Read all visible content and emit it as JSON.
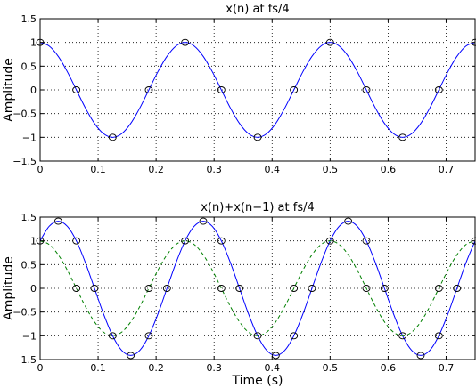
{
  "chart_data": [
    {
      "type": "line",
      "title": "x(n) at fs/4",
      "xlabel": "",
      "ylabel": "Amplitude",
      "xlim": [
        0,
        0.75
      ],
      "ylim": [
        -1.5,
        1.5
      ],
      "xticks": [
        0,
        0.1,
        0.2,
        0.3,
        0.4,
        0.5,
        0.6,
        0.7
      ],
      "xtick_labels": [
        "0",
        "0.1",
        "0.2",
        "0.3",
        "0.4",
        "0.5",
        "0.6",
        "0.7"
      ],
      "yticks": [
        -1.5,
        -1,
        -0.5,
        0,
        0.5,
        1,
        1.5
      ],
      "ytick_labels": [
        "−1.5",
        "−1",
        "−0.5",
        "0",
        "0.5",
        "1",
        "1.5"
      ],
      "grid": true,
      "series": [
        {
          "style": "solid",
          "color": "#0000ff",
          "x": [
            0,
            0.015625,
            0.03125,
            0.046875,
            0.0625,
            0.078125,
            0.09375,
            0.109375,
            0.125,
            0.140625,
            0.15625,
            0.171875,
            0.1875,
            0.203125,
            0.21875,
            0.234375,
            0.25,
            0.265625,
            0.28125,
            0.296875,
            0.3125,
            0.328125,
            0.34375,
            0.359375,
            0.375,
            0.390625,
            0.40625,
            0.421875,
            0.4375,
            0.453125,
            0.46875,
            0.484375,
            0.5,
            0.515625,
            0.53125,
            0.546875,
            0.5625,
            0.578125,
            0.59375,
            0.609375,
            0.625,
            0.640625,
            0.65625,
            0.671875,
            0.6875,
            0.703125,
            0.71875,
            0.734375,
            0.75
          ],
          "y": [
            1,
            0.924,
            0.707,
            0.383,
            0,
            -0.383,
            -0.707,
            -0.924,
            -1,
            -0.924,
            -0.707,
            -0.383,
            0,
            0.383,
            0.707,
            0.924,
            1,
            0.924,
            0.707,
            0.383,
            0,
            -0.383,
            -0.707,
            -0.924,
            -1,
            -0.924,
            -0.707,
            -0.383,
            0,
            0.383,
            0.707,
            0.924,
            1,
            0.924,
            0.707,
            0.383,
            0,
            -0.383,
            -0.707,
            -0.924,
            -1,
            -0.924,
            -0.707,
            -0.383,
            0,
            0.383,
            0.707,
            0.924,
            1
          ]
        },
        {
          "style": "markers",
          "marker": "circle",
          "color": "#000000",
          "x": [
            0,
            0.0625,
            0.125,
            0.1875,
            0.25,
            0.3125,
            0.375,
            0.4375,
            0.5,
            0.5625,
            0.625,
            0.6875,
            0.75
          ],
          "y": [
            1,
            0,
            -1,
            0,
            1,
            0,
            -1,
            0,
            1,
            0,
            -1,
            0,
            1
          ]
        }
      ]
    },
    {
      "type": "line",
      "title": "x(n)+x(n−1) at fs/4",
      "xlabel": "Time (s)",
      "ylabel": "Amplitude",
      "xlim": [
        0,
        0.75
      ],
      "ylim": [
        -1.5,
        1.5
      ],
      "xticks": [
        0,
        0.1,
        0.2,
        0.3,
        0.4,
        0.5,
        0.6,
        0.7
      ],
      "xtick_labels": [
        "0",
        "0.1",
        "0.2",
        "0.3",
        "0.4",
        "0.5",
        "0.6",
        "0.7"
      ],
      "yticks": [
        -1.5,
        -1,
        -0.5,
        0,
        0.5,
        1,
        1.5
      ],
      "ytick_labels": [
        "−1.5",
        "−1",
        "−0.5",
        "0",
        "0.5",
        "1",
        "1.5"
      ],
      "grid": true,
      "series": [
        {
          "style": "solid",
          "color": "#0000ff",
          "x": [
            0,
            0.015625,
            0.03125,
            0.046875,
            0.0625,
            0.078125,
            0.09375,
            0.109375,
            0.125,
            0.140625,
            0.15625,
            0.171875,
            0.1875,
            0.203125,
            0.21875,
            0.234375,
            0.25,
            0.265625,
            0.28125,
            0.296875,
            0.3125,
            0.328125,
            0.34375,
            0.359375,
            0.375,
            0.390625,
            0.40625,
            0.421875,
            0.4375,
            0.453125,
            0.46875,
            0.484375,
            0.5,
            0.515625,
            0.53125,
            0.546875,
            0.5625,
            0.578125,
            0.59375,
            0.609375,
            0.625,
            0.640625,
            0.65625,
            0.671875,
            0.6875,
            0.703125,
            0.71875,
            0.734375,
            0.75
          ],
          "y": [
            1,
            1.307,
            1.414,
            1.307,
            1,
            0.541,
            0,
            -0.541,
            -1,
            -1.307,
            -1.414,
            -1.307,
            -1,
            -0.541,
            0,
            0.541,
            1,
            1.307,
            1.414,
            1.307,
            1,
            0.541,
            0,
            -0.541,
            -1,
            -1.307,
            -1.414,
            -1.307,
            -1,
            -0.541,
            0,
            0.541,
            1,
            1.307,
            1.414,
            1.307,
            1,
            0.541,
            0,
            -0.541,
            -1,
            -1.307,
            -1.414,
            -1.307,
            -1,
            -0.541,
            0,
            0.541,
            1
          ]
        },
        {
          "style": "dashed",
          "color": "#008000",
          "x": [
            0,
            0.015625,
            0.03125,
            0.046875,
            0.0625,
            0.078125,
            0.09375,
            0.109375,
            0.125,
            0.140625,
            0.15625,
            0.171875,
            0.1875,
            0.203125,
            0.21875,
            0.234375,
            0.25,
            0.265625,
            0.28125,
            0.296875,
            0.3125,
            0.328125,
            0.34375,
            0.359375,
            0.375,
            0.390625,
            0.40625,
            0.421875,
            0.4375,
            0.453125,
            0.46875,
            0.484375,
            0.5,
            0.515625,
            0.53125,
            0.546875,
            0.5625,
            0.578125,
            0.59375,
            0.609375,
            0.625,
            0.640625,
            0.65625,
            0.671875,
            0.6875,
            0.703125,
            0.71875,
            0.734375,
            0.75
          ],
          "y": [
            1,
            0.924,
            0.707,
            0.383,
            0,
            -0.383,
            -0.707,
            -0.924,
            -1,
            -0.924,
            -0.707,
            -0.383,
            0,
            0.383,
            0.707,
            0.924,
            1,
            0.924,
            0.707,
            0.383,
            0,
            -0.383,
            -0.707,
            -0.924,
            -1,
            -0.924,
            -0.707,
            -0.383,
            0,
            0.383,
            0.707,
            0.924,
            1,
            0.924,
            0.707,
            0.383,
            0,
            -0.383,
            -0.707,
            -0.924,
            -1,
            -0.924,
            -0.707,
            -0.383,
            0,
            0.383,
            0.707,
            0.924,
            1
          ]
        },
        {
          "style": "markers",
          "marker": "circle",
          "color": "#000000",
          "x": [
            0,
            0.03125,
            0.0625,
            0.09375,
            0.125,
            0.15625,
            0.1875,
            0.21875,
            0.25,
            0.28125,
            0.3125,
            0.34375,
            0.375,
            0.40625,
            0.4375,
            0.46875,
            0.5,
            0.53125,
            0.5625,
            0.59375,
            0.625,
            0.65625,
            0.6875,
            0.71875,
            0.75
          ],
          "y": [
            1,
            1.414,
            1,
            0,
            -1,
            -1.414,
            -1,
            0,
            1,
            1.414,
            1,
            0,
            -1,
            -1.414,
            -1,
            0,
            1,
            1.414,
            1,
            0,
            -1,
            -1.414,
            -1,
            0,
            1
          ]
        },
        {
          "style": "markers",
          "marker": "circle",
          "color": "#000000",
          "x": [
            0.0625,
            0.1875,
            0.3125,
            0.4375,
            0.5625,
            0.6875
          ],
          "y": [
            0,
            0,
            0,
            0,
            0,
            0
          ]
        }
      ]
    }
  ]
}
